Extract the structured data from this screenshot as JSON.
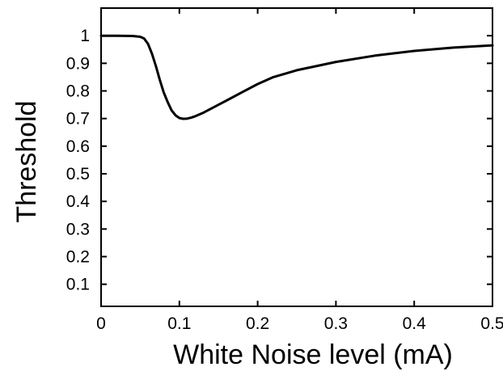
{
  "chart_data": {
    "type": "line",
    "title": "",
    "xlabel": "White Noise level (mA)",
    "ylabel": "Threshold",
    "xlim": [
      0,
      0.5
    ],
    "ylim": [
      0.02,
      1.1
    ],
    "xticks": [
      0,
      0.1,
      0.2,
      0.3,
      0.4,
      0.5
    ],
    "xtick_labels": [
      "0",
      "0.1",
      "0.2",
      "0.3",
      "0.4",
      "0.5"
    ],
    "yticks": [
      0.1,
      0.2,
      0.3,
      0.4,
      0.5,
      0.6,
      0.7,
      0.8,
      0.9,
      1
    ],
    "ytick_labels": [
      "0.1",
      "0.2",
      "0.3",
      "0.4",
      "0.5",
      "0.6",
      "0.7",
      "0.8",
      "0.9",
      "1"
    ],
    "grid": false,
    "legend": false,
    "line_color": "#000000",
    "series": [
      {
        "x": [
          0,
          0.02,
          0.04,
          0.05,
          0.055,
          0.06,
          0.065,
          0.07,
          0.075,
          0.08,
          0.085,
          0.09,
          0.095,
          0.1,
          0.105,
          0.11,
          0.115,
          0.12,
          0.13,
          0.14,
          0.15,
          0.16,
          0.18,
          0.2,
          0.22,
          0.25,
          0.3,
          0.35,
          0.4,
          0.45,
          0.5
        ],
        "y": [
          1.0,
          1.0,
          0.999,
          0.996,
          0.99,
          0.97,
          0.935,
          0.89,
          0.84,
          0.795,
          0.76,
          0.73,
          0.712,
          0.702,
          0.699,
          0.7,
          0.703,
          0.708,
          0.72,
          0.735,
          0.75,
          0.765,
          0.795,
          0.825,
          0.85,
          0.875,
          0.905,
          0.928,
          0.945,
          0.957,
          0.965
        ]
      }
    ]
  }
}
